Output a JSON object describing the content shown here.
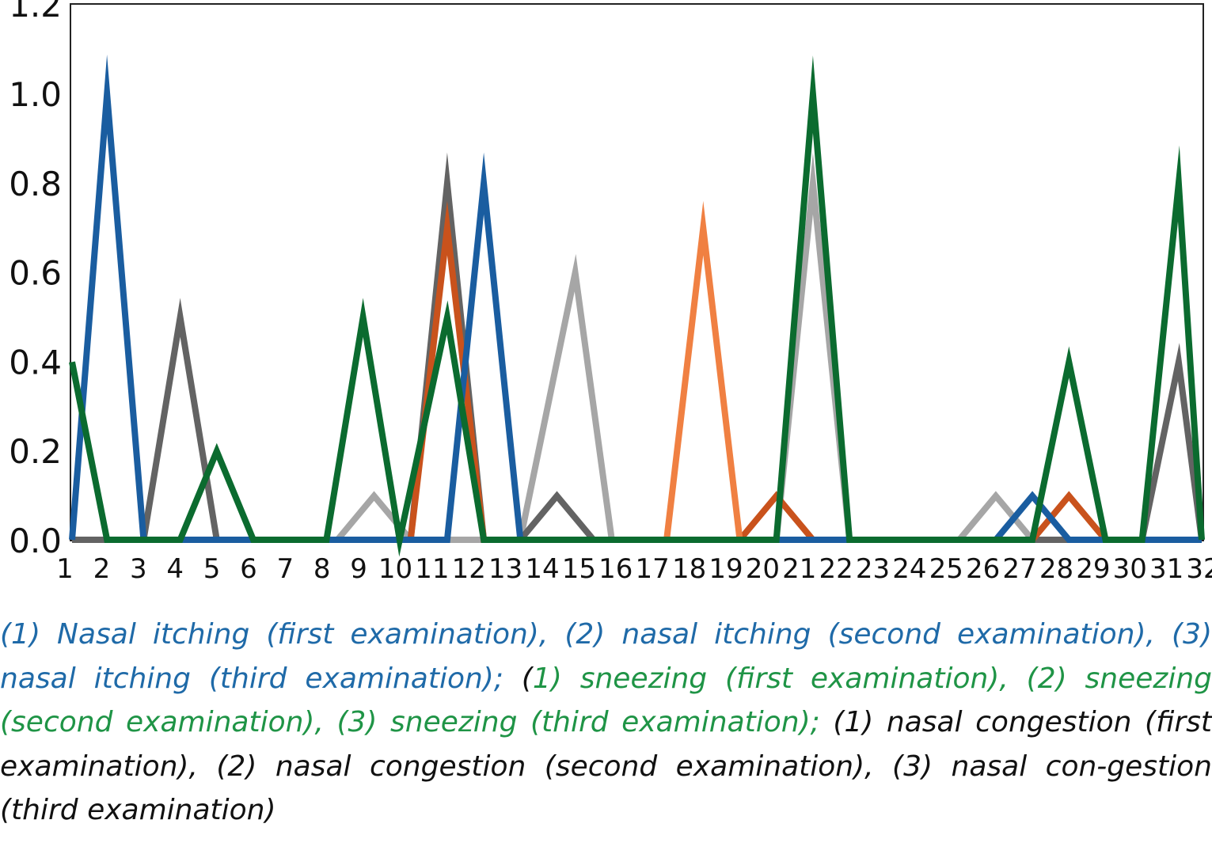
{
  "chart_data": {
    "type": "line",
    "categories": [
      "1",
      "2",
      "3",
      "4",
      "5",
      "6",
      "7",
      "8",
      "9",
      "10",
      "11",
      "12",
      "13",
      "14",
      "15",
      "16",
      "17",
      "18",
      "19",
      "20",
      "21",
      "22",
      "23",
      "24",
      "25",
      "26",
      "27",
      "28",
      "29",
      "30",
      "31",
      "32"
    ],
    "ylim": [
      0,
      1.2
    ],
    "yticks": [
      "0.0",
      "0.2",
      "0.4",
      "0.6",
      "0.8",
      "1.0",
      "1.2"
    ],
    "grid": false,
    "legend": "none",
    "series": [
      {
        "color": "#a6a6a6",
        "points": [
          [
            0,
            0
          ],
          [
            1,
            0
          ],
          [
            1.5,
            0
          ],
          [
            2.5,
            0
          ],
          [
            3.5,
            0
          ],
          [
            4.5,
            0
          ],
          [
            5.5,
            0
          ],
          [
            6.5,
            0
          ],
          [
            7.3,
            0
          ],
          [
            8.3,
            0.1
          ],
          [
            9.3,
            0
          ],
          [
            10.3,
            0
          ],
          [
            11.3,
            0
          ],
          [
            12.3,
            0
          ],
          [
            13.3,
            0
          ],
          [
            14.3,
            0
          ],
          [
            15.3,
            0
          ],
          [
            16.3,
            0
          ],
          [
            17.3,
            0
          ],
          [
            18.3,
            0
          ],
          [
            19.3,
            0
          ],
          [
            20.3,
            0
          ],
          [
            21.3,
            0
          ],
          [
            22.3,
            0
          ],
          [
            23.3,
            0
          ],
          [
            24.3,
            0
          ],
          [
            25.3,
            0
          ],
          [
            26.3,
            0
          ],
          [
            27.3,
            0
          ],
          [
            28.3,
            0
          ],
          [
            29.3,
            0
          ],
          [
            30.3,
            0
          ],
          [
            31.3,
            0
          ],
          [
            32,
            0
          ]
        ]
      },
      {
        "color": "#a6a6a6",
        "points": [
          [
            12.3,
            0
          ],
          [
            13.8,
            0.6
          ],
          [
            14.8,
            0
          ],
          [
            18.3,
            0
          ],
          [
            19.3,
            0
          ],
          [
            20.3,
            0.8
          ],
          [
            21.3,
            0
          ],
          [
            23.3,
            0
          ],
          [
            24.3,
            0
          ],
          [
            25.3,
            0.1
          ],
          [
            26.3,
            0
          ],
          [
            27.3,
            0
          ]
        ]
      },
      {
        "color": "#636363",
        "points": [
          [
            0,
            0
          ],
          [
            1,
            0
          ],
          [
            2,
            0
          ],
          [
            3,
            0.5
          ],
          [
            4,
            0
          ],
          [
            8.5,
            0
          ],
          [
            9.3,
            0
          ],
          [
            10.3,
            0.8
          ],
          [
            11.3,
            0
          ],
          [
            12.3,
            0
          ],
          [
            13.3,
            0.1
          ],
          [
            14.3,
            0
          ],
          [
            28.3,
            0
          ],
          [
            29.3,
            0
          ],
          [
            30.3,
            0.4
          ],
          [
            31.3,
            0
          ],
          [
            32,
            0
          ]
        ]
      },
      {
        "color": "#c9521c",
        "points": [
          [
            9.3,
            0
          ],
          [
            10.3,
            0.7
          ],
          [
            11.3,
            0
          ],
          [
            18.3,
            0
          ],
          [
            19.3,
            0.1
          ],
          [
            20.3,
            0
          ],
          [
            25.3,
            0
          ],
          [
            26.3,
            0
          ],
          [
            27.3,
            0.1
          ],
          [
            28.3,
            0
          ]
        ]
      },
      {
        "color": "#f08042",
        "points": [
          [
            16.3,
            0
          ],
          [
            17.3,
            0.7
          ],
          [
            18.3,
            0
          ]
        ]
      },
      {
        "color": "#1a5da0",
        "points": [
          [
            0,
            0
          ],
          [
            1,
            1.0
          ],
          [
            2,
            0
          ],
          [
            3,
            0
          ],
          [
            4,
            0
          ],
          [
            5,
            0
          ],
          [
            6,
            0
          ],
          [
            7,
            0
          ],
          [
            8,
            0
          ],
          [
            9,
            0
          ],
          [
            10.3,
            0
          ],
          [
            11.3,
            0.8
          ],
          [
            12.3,
            0
          ],
          [
            13.3,
            0
          ],
          [
            19.3,
            0
          ],
          [
            20.3,
            0
          ],
          [
            21.3,
            0
          ],
          [
            24.3,
            0
          ],
          [
            25.3,
            0
          ],
          [
            26.3,
            0.1
          ],
          [
            27.3,
            0
          ],
          [
            28.3,
            0
          ],
          [
            29.3,
            0
          ],
          [
            30.3,
            0
          ],
          [
            31.3,
            0
          ],
          [
            32,
            0
          ]
        ]
      },
      {
        "color": "#0b6b2f",
        "points": [
          [
            0,
            0.4
          ],
          [
            1,
            0
          ],
          [
            2,
            0
          ],
          [
            3,
            0
          ],
          [
            4,
            0.2
          ],
          [
            5,
            0
          ],
          [
            6,
            0
          ],
          [
            7,
            0
          ],
          [
            8,
            0.5
          ],
          [
            9,
            0
          ],
          [
            10.3,
            0.5
          ],
          [
            11.3,
            0
          ],
          [
            12.3,
            0
          ],
          [
            13.3,
            0
          ],
          [
            14.3,
            0
          ],
          [
            15.3,
            0
          ],
          [
            16.3,
            0
          ],
          [
            17.3,
            0
          ],
          [
            18.3,
            0
          ],
          [
            19.3,
            0
          ],
          [
            20.3,
            1.0
          ],
          [
            21.3,
            0
          ],
          [
            22.3,
            0
          ],
          [
            23.3,
            0
          ],
          [
            24.3,
            0
          ],
          [
            25.3,
            0
          ],
          [
            26.3,
            0
          ],
          [
            27.3,
            0.4
          ],
          [
            28.3,
            0
          ],
          [
            29.3,
            0
          ],
          [
            30.3,
            0.8
          ],
          [
            31.3,
            0
          ],
          [
            32,
            0
          ]
        ]
      }
    ]
  },
  "caption": {
    "part1": "(1) Nasal itching (first examination), (2) nasal itching (second examination), (3) nasal itching (third examination); ",
    "part2": "(",
    "part3": "1) sneezing (first examination), (2) sneezing (second examination), (3) sneezing (third examination); ",
    "part4": "(1) nasal congestion (first examination), (2) nasal congestion (second examination), (3) nasal con-gestion (third examination)"
  }
}
